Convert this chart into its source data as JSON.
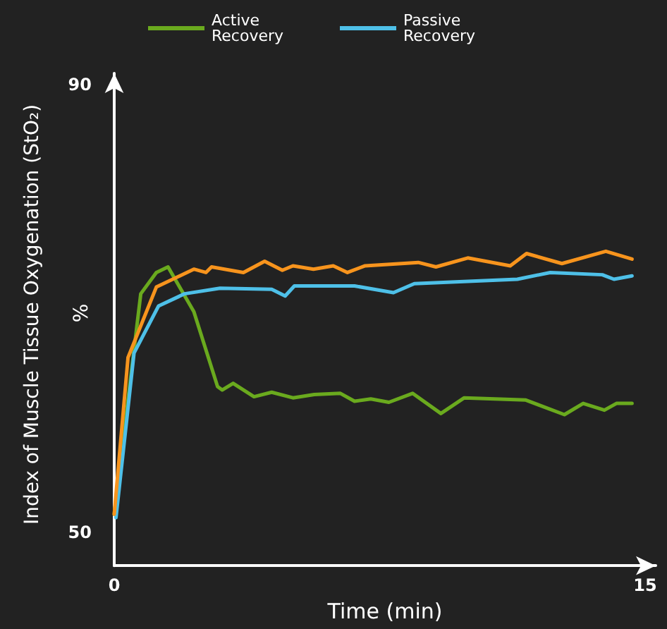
{
  "chart_data": {
    "type": "line",
    "xlabel": "Time (min)",
    "ylabel": "Index of Muscle Tissue Oxygenation (StO₂)",
    "annotations": [
      "%"
    ],
    "xlim": [
      0,
      15.3
    ],
    "xticks": [
      0,
      15
    ],
    "ylim": [
      47,
      91
    ],
    "yticks": [
      50,
      90
    ],
    "grid": false,
    "legend": "top",
    "marker": "none",
    "line_style": "solid",
    "series": [
      {
        "name": "Active Recovery",
        "color": "#6aaa1e",
        "x": [
          0,
          0.75,
          1.19,
          1.52,
          2.25,
          2.92,
          3.05,
          3.36,
          3.95,
          4.45,
          5.05,
          5.65,
          6.39,
          6.79,
          7.25,
          7.76,
          8.43,
          9.23,
          9.89,
          11.63,
          12.72,
          13.25,
          13.85,
          14.19,
          14.63
        ],
        "values": [
          51.6,
          71.3,
          73.2,
          73.7,
          69.7,
          63.0,
          62.7,
          63.3,
          62.1,
          62.5,
          62.0,
          62.3,
          62.4,
          61.7,
          61.9,
          61.6,
          62.4,
          60.6,
          62.0,
          61.8,
          60.5,
          61.5,
          60.9,
          61.5,
          61.5
        ]
      },
      {
        "name": "Passive Recovery",
        "color": "#4ec0e8",
        "x": [
          0.05,
          0.56,
          1.25,
          1.99,
          2.99,
          4.45,
          4.83,
          5.09,
          6.79,
          7.89,
          8.48,
          11.39,
          12.32,
          13.79,
          14.12,
          14.63
        ],
        "values": [
          51.3,
          66.0,
          70.2,
          71.3,
          71.8,
          71.7,
          71.1,
          72.0,
          72.0,
          71.4,
          72.2,
          72.6,
          73.2,
          73.0,
          72.6,
          72.9
        ]
      },
      {
        "color": "#f7941d",
        "x": [
          0,
          0.39,
          1.19,
          2.25,
          2.59,
          2.75,
          3.65,
          4.25,
          4.75,
          5.05,
          5.63,
          6.19,
          6.59,
          7.09,
          8.59,
          9.09,
          9.99,
          11.19,
          11.65,
          12.65,
          13.89,
          14.63
        ],
        "values": [
          51.6,
          65.6,
          71.9,
          73.5,
          73.2,
          73.7,
          73.2,
          74.2,
          73.4,
          73.8,
          73.5,
          73.8,
          73.2,
          73.8,
          74.1,
          73.7,
          74.5,
          73.8,
          74.9,
          74.0,
          75.1,
          74.4
        ]
      }
    ]
  }
}
